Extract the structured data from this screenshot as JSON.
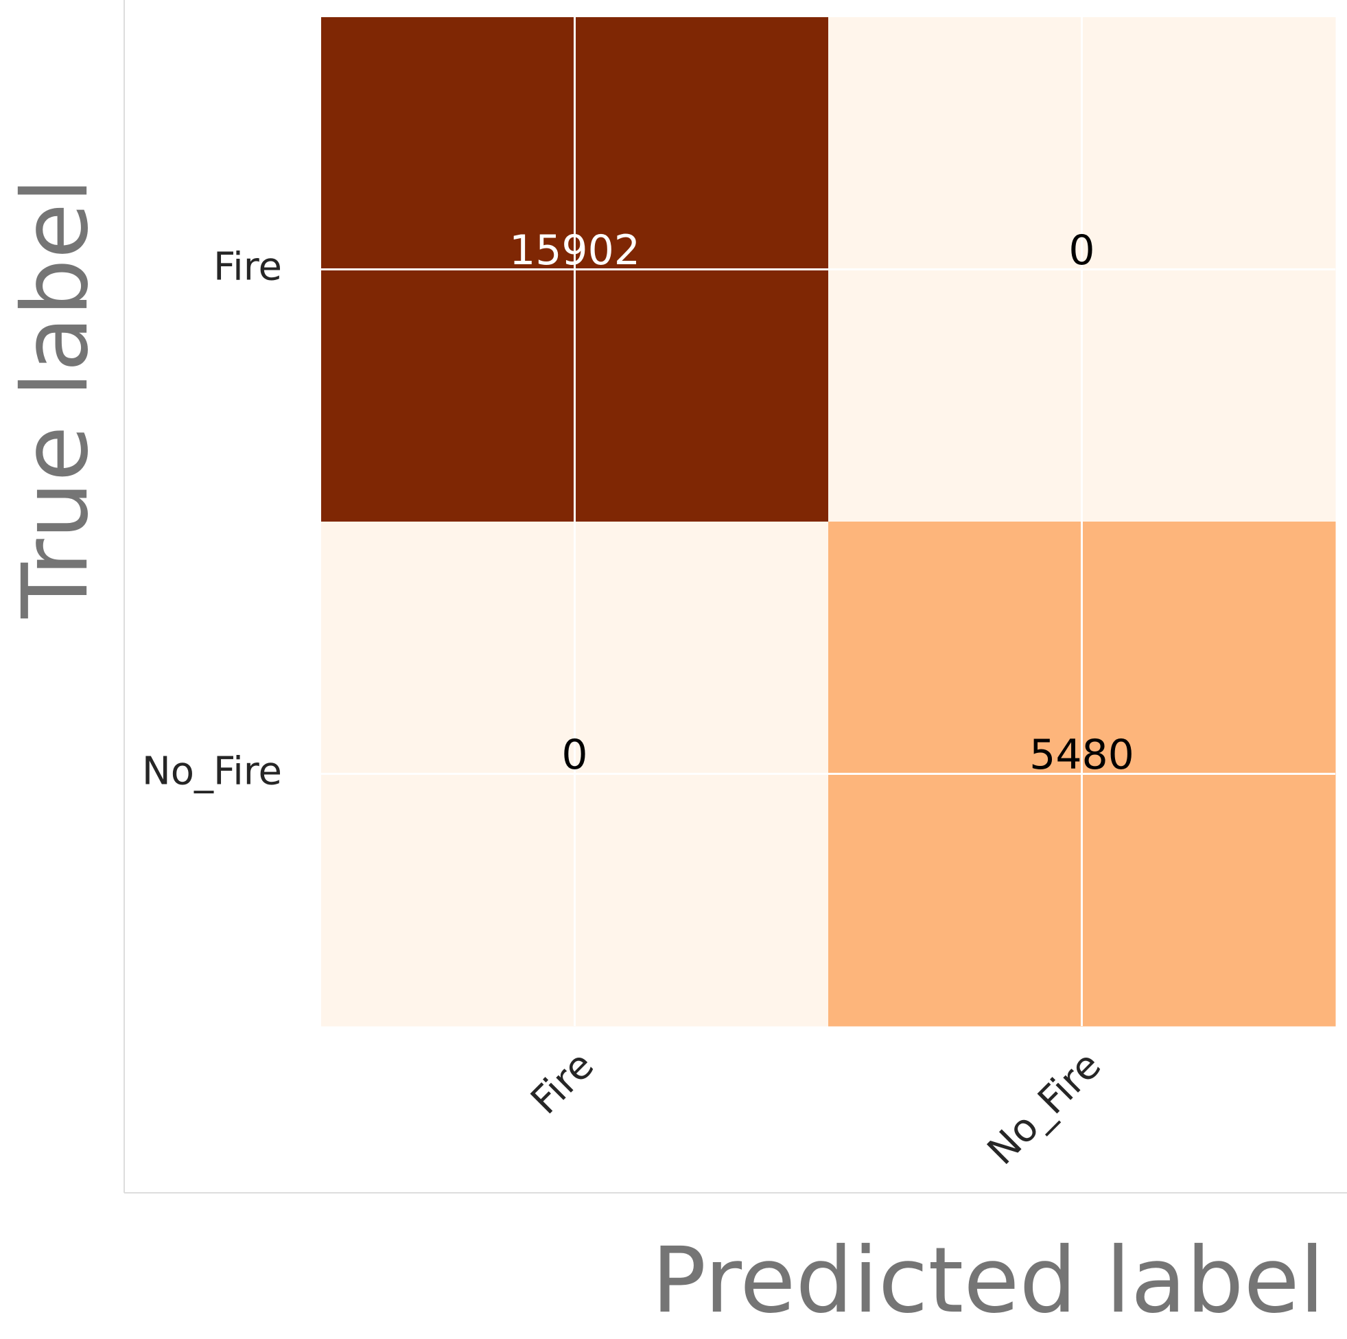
{
  "chart_data": {
    "type": "heatmap",
    "x_label": "Predicted label",
    "y_label": "True label",
    "x_categories": [
      "Fire",
      "No_Fire"
    ],
    "y_categories": [
      "Fire",
      "No_Fire"
    ],
    "values": [
      [
        15902,
        0
      ],
      [
        0,
        5480
      ]
    ],
    "colors": [
      [
        "#7f2704",
        "#fff5eb"
      ],
      [
        "#fff5eb",
        "#fdb57b"
      ]
    ],
    "grid": true
  }
}
